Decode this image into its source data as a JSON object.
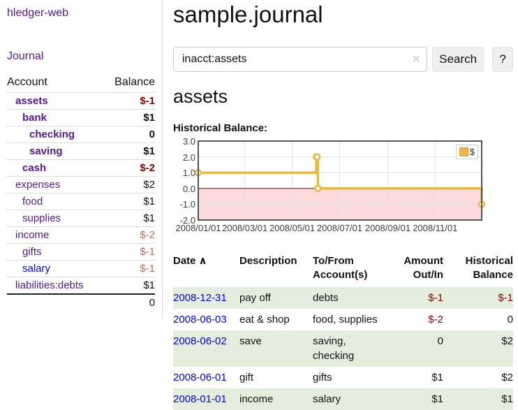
{
  "app": {
    "brand": "hledger-web"
  },
  "sidebar": {
    "journal_link": "Journal",
    "accounts": {
      "header_account": "Account",
      "header_balance": "Balance",
      "rows": [
        {
          "name": "assets",
          "indent": 1,
          "bold": true,
          "balance": "$-1",
          "negative": "strong"
        },
        {
          "name": "bank",
          "indent": 2,
          "bold": true,
          "balance": "$1"
        },
        {
          "name": "checking",
          "indent": 3,
          "bold": true,
          "balance": "0"
        },
        {
          "name": "saving",
          "indent": 3,
          "bold": true,
          "balance": "$1"
        },
        {
          "name": "cash",
          "indent": 2,
          "bold": true,
          "balance": "$-2",
          "negative": "strong"
        },
        {
          "name": "expenses",
          "indent": 1,
          "balance": "$2"
        },
        {
          "name": "food",
          "indent": 2,
          "balance": "$1"
        },
        {
          "name": "supplies",
          "indent": 2,
          "balance": "$1"
        },
        {
          "name": "income",
          "indent": 1,
          "balance": "$-2",
          "negative": "soft"
        },
        {
          "name": "gifts",
          "indent": 2,
          "balance": "$-1",
          "negative": "soft"
        },
        {
          "name": "salary",
          "indent": 2,
          "balance": "$-1",
          "negative": "soft",
          "blue_link": true
        },
        {
          "name": "liabilities:debts",
          "indent": 1,
          "balance": "$1"
        }
      ],
      "total": "0"
    }
  },
  "main": {
    "title": "sample.journal",
    "search": {
      "value": "inacct:assets",
      "clear_icon": "✕",
      "search_button": "Search",
      "help_button": "?"
    },
    "account_heading": "assets",
    "chart_heading": "Historical Balance:"
  },
  "chart_data": {
    "type": "line",
    "step": true,
    "title": "Historical Balance:",
    "series": [
      {
        "name": "$",
        "points": [
          [
            "2008-01-01",
            1
          ],
          [
            "2008-06-01",
            2
          ],
          [
            "2008-06-02",
            2
          ],
          [
            "2008-06-03",
            0
          ],
          [
            "2008-12-31",
            -1
          ]
        ]
      }
    ],
    "xlim": [
      "2008-01-01",
      "2008-12-31"
    ],
    "ylim": [
      -2,
      3
    ],
    "y_ticks": [
      3.0,
      2.0,
      1.0,
      0.0,
      -1.0,
      -2.0
    ],
    "y_tick_labels": [
      "3.0",
      "2.0",
      "1.0",
      "0.0",
      "-1.0",
      "-2.0"
    ],
    "x_tick_labels": [
      "2008/01/01",
      "2008/03/01",
      "2008/05/01",
      "2008/07/01",
      "2008/09/01",
      "2008/11/01"
    ],
    "legend": {
      "label": "$",
      "position": "top-right"
    },
    "colors": {
      "line": "#e6ba45",
      "marker_fill": "#ffffff",
      "negative_region": "#fadada",
      "zero_line": "#8b0000",
      "grid": "#e2e2e2",
      "border": "#545454"
    }
  },
  "register": {
    "headers": {
      "date": "Date",
      "sort_icon": "∧",
      "description": "Description",
      "accounts": "To/From Account(s)",
      "amount": "Amount Out/In",
      "balance": "Historical Balance"
    },
    "rows": [
      {
        "date": "2008-12-31",
        "description": "pay off",
        "accounts": "debts",
        "amount": "$-1",
        "amount_negative": true,
        "balance": "$-1",
        "balance_negative": true,
        "shaded": true
      },
      {
        "date": "2008-06-03",
        "description": "eat & shop",
        "accounts": "food, supplies",
        "amount": "$-2",
        "amount_negative": true,
        "balance": "0"
      },
      {
        "date": "2008-06-02",
        "description": "save",
        "accounts": "saving, checking",
        "amount": "0",
        "balance": "$2",
        "wrap_accounts": true,
        "shaded": true
      },
      {
        "date": "2008-06-01",
        "description": "gift",
        "accounts": "gifts",
        "amount": "$1",
        "balance": "$2"
      },
      {
        "date": "2008-01-01",
        "description": "income",
        "accounts": "salary",
        "amount": "$1",
        "balance": "$1",
        "shaded": true
      }
    ]
  }
}
